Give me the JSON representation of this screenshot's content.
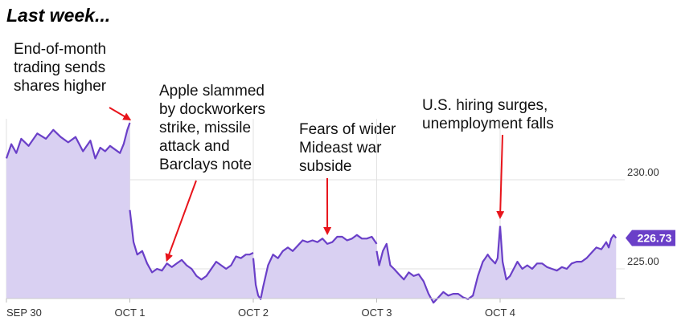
{
  "heading": "Last week...",
  "chart_data": {
    "type": "area",
    "title": "",
    "xlabel": "",
    "ylabel": "",
    "x_ticks": [
      "SEP 30",
      "OCT 1",
      "OCT 2",
      "OCT 3",
      "OCT 4"
    ],
    "y_ticks": [
      "230.00",
      "225.00"
    ],
    "ylim": [
      222.5,
      233.4
    ],
    "grid": true,
    "last_price": "226.73",
    "colors": {
      "line": "#6a3fc8",
      "fill": "#d9d0f2",
      "badge": "#6a3fc8",
      "grid": "#e2e2e2",
      "arrow": "#e8141b"
    },
    "series": [
      {
        "days": [
          [
            [
              0,
              231.2
            ],
            [
              0.04,
              232.0
            ],
            [
              0.08,
              231.5
            ],
            [
              0.12,
              232.3
            ],
            [
              0.18,
              231.9
            ],
            [
              0.25,
              232.6
            ],
            [
              0.32,
              232.3
            ],
            [
              0.38,
              232.8
            ],
            [
              0.44,
              232.4
            ],
            [
              0.5,
              232.1
            ],
            [
              0.56,
              232.4
            ],
            [
              0.62,
              231.6
            ],
            [
              0.68,
              232.2
            ],
            [
              0.72,
              231.2
            ],
            [
              0.76,
              231.8
            ],
            [
              0.8,
              231.6
            ],
            [
              0.84,
              231.9
            ],
            [
              0.88,
              231.7
            ],
            [
              0.92,
              231.5
            ],
            [
              0.95,
              232.0
            ],
            [
              0.98,
              232.8
            ],
            [
              1.0,
              233.2
            ]
          ],
          [
            [
              1.0,
              228.3
            ],
            [
              1.03,
              226.5
            ],
            [
              1.06,
              225.8
            ],
            [
              1.1,
              226.0
            ],
            [
              1.14,
              225.3
            ],
            [
              1.18,
              224.8
            ],
            [
              1.22,
              225.0
            ],
            [
              1.26,
              224.9
            ],
            [
              1.3,
              225.3
            ],
            [
              1.34,
              225.1
            ],
            [
              1.38,
              225.3
            ],
            [
              1.42,
              225.5
            ],
            [
              1.46,
              225.2
            ],
            [
              1.5,
              225.0
            ],
            [
              1.54,
              224.6
            ],
            [
              1.58,
              224.4
            ],
            [
              1.62,
              224.6
            ],
            [
              1.66,
              225.0
            ],
            [
              1.7,
              225.4
            ],
            [
              1.74,
              225.2
            ],
            [
              1.78,
              225.0
            ],
            [
              1.82,
              225.2
            ],
            [
              1.86,
              225.7
            ],
            [
              1.9,
              225.6
            ],
            [
              1.94,
              225.8
            ],
            [
              1.97,
              225.8
            ],
            [
              2.0,
              225.9
            ]
          ],
          [
            [
              2.0,
              225.6
            ],
            [
              2.02,
              224.1
            ],
            [
              2.04,
              223.5
            ],
            [
              2.06,
              223.3
            ],
            [
              2.08,
              224.0
            ],
            [
              2.12,
              225.2
            ],
            [
              2.16,
              225.8
            ],
            [
              2.2,
              225.6
            ],
            [
              2.24,
              226.0
            ],
            [
              2.28,
              226.2
            ],
            [
              2.32,
              226.0
            ],
            [
              2.36,
              226.3
            ],
            [
              2.4,
              226.6
            ],
            [
              2.44,
              226.5
            ],
            [
              2.48,
              226.6
            ],
            [
              2.52,
              226.5
            ],
            [
              2.56,
              226.7
            ],
            [
              2.6,
              226.4
            ],
            [
              2.64,
              226.5
            ],
            [
              2.68,
              226.8
            ],
            [
              2.72,
              226.8
            ],
            [
              2.76,
              226.6
            ],
            [
              2.8,
              226.7
            ],
            [
              2.84,
              226.9
            ],
            [
              2.88,
              226.7
            ],
            [
              2.92,
              226.7
            ],
            [
              2.96,
              226.8
            ],
            [
              3.0,
              226.4
            ]
          ],
          [
            [
              3.0,
              226.0
            ],
            [
              3.02,
              225.2
            ],
            [
              3.05,
              226.0
            ],
            [
              3.08,
              226.4
            ],
            [
              3.11,
              225.2
            ],
            [
              3.14,
              225.0
            ],
            [
              3.18,
              224.7
            ],
            [
              3.22,
              224.4
            ],
            [
              3.26,
              224.8
            ],
            [
              3.3,
              224.6
            ],
            [
              3.34,
              224.7
            ],
            [
              3.38,
              224.3
            ],
            [
              3.42,
              223.6
            ],
            [
              3.46,
              223.1
            ],
            [
              3.5,
              223.4
            ],
            [
              3.54,
              223.7
            ],
            [
              3.58,
              223.5
            ],
            [
              3.62,
              223.6
            ],
            [
              3.66,
              223.6
            ],
            [
              3.7,
              223.4
            ],
            [
              3.74,
              223.3
            ],
            [
              3.78,
              223.5
            ],
            [
              3.82,
              224.6
            ],
            [
              3.86,
              225.4
            ],
            [
              3.88,
              225.6
            ],
            [
              3.9,
              225.8
            ],
            [
              3.92,
              225.6
            ],
            [
              3.96,
              225.3
            ],
            [
              3.98,
              225.6
            ],
            [
              4.0,
              227.4
            ]
          ],
          [
            [
              4.0,
              227.4
            ],
            [
              4.02,
              225.4
            ],
            [
              4.05,
              224.4
            ],
            [
              4.08,
              224.6
            ],
            [
              4.11,
              225.0
            ],
            [
              4.14,
              225.4
            ],
            [
              4.18,
              225.0
            ],
            [
              4.22,
              225.2
            ],
            [
              4.26,
              225.0
            ],
            [
              4.3,
              225.3
            ],
            [
              4.34,
              225.3
            ],
            [
              4.38,
              225.1
            ],
            [
              4.42,
              225.0
            ],
            [
              4.46,
              224.9
            ],
            [
              4.5,
              225.1
            ],
            [
              4.54,
              225.0
            ],
            [
              4.58,
              225.3
            ],
            [
              4.62,
              225.4
            ],
            [
              4.66,
              225.4
            ],
            [
              4.7,
              225.6
            ],
            [
              4.74,
              225.9
            ],
            [
              4.78,
              226.2
            ],
            [
              4.82,
              226.1
            ],
            [
              4.86,
              226.5
            ],
            [
              4.88,
              226.2
            ],
            [
              4.9,
              226.7
            ],
            [
              4.92,
              226.9
            ],
            [
              4.94,
              226.73
            ]
          ]
        ]
      }
    ],
    "annotations": [
      {
        "text": "End-of-month\ntrading sends\nshares higher",
        "arrow_to": [
          1.0,
          233.2
        ]
      },
      {
        "text": "Apple slammed\nby dockworkers\nstrike, missile\nattack and\nBarclays note",
        "arrow_to": [
          1.3,
          225.3
        ]
      },
      {
        "text": "Fears of wider\nMideast war\nsubside",
        "arrow_to": [
          2.6,
          226.8
        ]
      },
      {
        "text": "U.S. hiring surges,\nunemployment falls",
        "arrow_to": [
          4.0,
          227.7
        ]
      }
    ]
  }
}
